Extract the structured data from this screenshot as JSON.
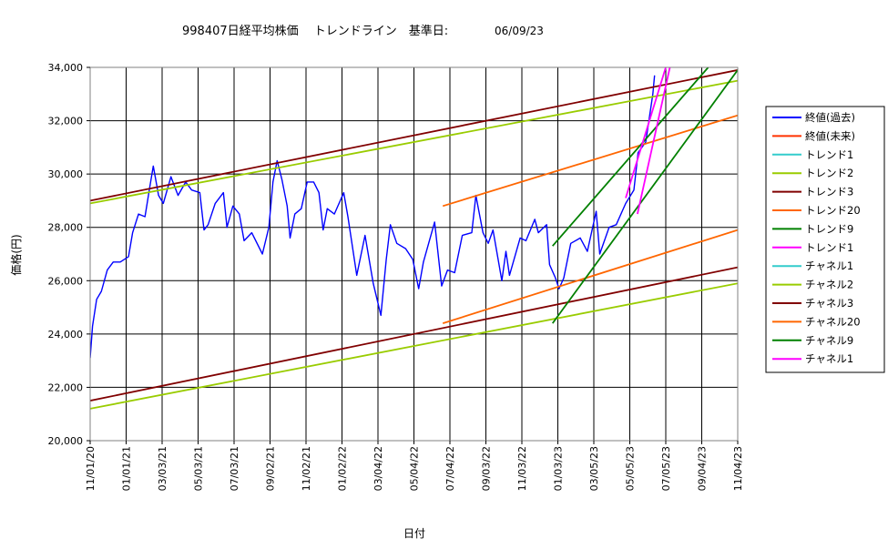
{
  "chart_data": {
    "type": "line",
    "title": "998407日経平均株価　 トレンドライン　基準日:",
    "base_date": "06/09/23",
    "xlabel": "日付",
    "ylabel": "価格(円)",
    "ylim": [
      20000,
      34000
    ],
    "yticks": [
      "20,000",
      "22,000",
      "24,000",
      "26,000",
      "28,000",
      "30,000",
      "32,000",
      "34,000"
    ],
    "xticks": [
      "11/01/20",
      "01/01/21",
      "03/03/21",
      "05/03/21",
      "07/03/21",
      "09/02/21",
      "11/02/21",
      "01/02/22",
      "03/04/22",
      "05/04/22",
      "07/04/22",
      "09/03/22",
      "11/03/22",
      "01/03/23",
      "03/05/23",
      "05/05/23",
      "07/05/23",
      "09/04/23",
      "11/04/23"
    ],
    "x_range": [
      "2020-11-01",
      "2023-11-04"
    ],
    "grid": true,
    "legend_position": "right",
    "series": [
      {
        "name": "終値(過去)",
        "color": "#0000ff",
        "points": [
          [
            "2020-11-01",
            23100
          ],
          [
            "2020-11-05",
            24300
          ],
          [
            "2020-11-12",
            25300
          ],
          [
            "2020-11-20",
            25600
          ],
          [
            "2020-11-30",
            26400
          ],
          [
            "2020-12-10",
            26700
          ],
          [
            "2020-12-22",
            26700
          ],
          [
            "2021-01-05",
            26900
          ],
          [
            "2021-01-12",
            27800
          ],
          [
            "2021-01-22",
            28500
          ],
          [
            "2021-02-02",
            28400
          ],
          [
            "2021-02-10",
            29500
          ],
          [
            "2021-02-16",
            30300
          ],
          [
            "2021-02-25",
            29200
          ],
          [
            "2021-03-05",
            28900
          ],
          [
            "2021-03-18",
            29900
          ],
          [
            "2021-03-30",
            29200
          ],
          [
            "2021-04-12",
            29700
          ],
          [
            "2021-04-22",
            29400
          ],
          [
            "2021-05-06",
            29300
          ],
          [
            "2021-05-13",
            27900
          ],
          [
            "2021-05-20",
            28100
          ],
          [
            "2021-06-01",
            28900
          ],
          [
            "2021-06-15",
            29300
          ],
          [
            "2021-06-21",
            28000
          ],
          [
            "2021-07-01",
            28800
          ],
          [
            "2021-07-12",
            28500
          ],
          [
            "2021-07-20",
            27500
          ],
          [
            "2021-08-02",
            27800
          ],
          [
            "2021-08-20",
            27000
          ],
          [
            "2021-08-31",
            28000
          ],
          [
            "2021-09-07",
            29700
          ],
          [
            "2021-09-14",
            30500
          ],
          [
            "2021-09-22",
            29800
          ],
          [
            "2021-10-01",
            28800
          ],
          [
            "2021-10-06",
            27600
          ],
          [
            "2021-10-14",
            28500
          ],
          [
            "2021-10-25",
            28700
          ],
          [
            "2021-11-04",
            29700
          ],
          [
            "2021-11-15",
            29700
          ],
          [
            "2021-11-24",
            29300
          ],
          [
            "2021-12-01",
            27900
          ],
          [
            "2021-12-08",
            28700
          ],
          [
            "2021-12-20",
            28500
          ],
          [
            "2022-01-05",
            29300
          ],
          [
            "2022-01-12",
            28400
          ],
          [
            "2022-01-27",
            26200
          ],
          [
            "2022-02-10",
            27700
          ],
          [
            "2022-02-24",
            25900
          ],
          [
            "2022-03-09",
            24700
          ],
          [
            "2022-03-18",
            26800
          ],
          [
            "2022-03-25",
            28100
          ],
          [
            "2022-04-05",
            27400
          ],
          [
            "2022-04-20",
            27200
          ],
          [
            "2022-05-02",
            26800
          ],
          [
            "2022-05-12",
            25700
          ],
          [
            "2022-05-20",
            26700
          ],
          [
            "2022-06-08",
            28200
          ],
          [
            "2022-06-20",
            25800
          ],
          [
            "2022-06-30",
            26400
          ],
          [
            "2022-07-12",
            26300
          ],
          [
            "2022-07-25",
            27700
          ],
          [
            "2022-08-10",
            27800
          ],
          [
            "2022-08-17",
            29200
          ],
          [
            "2022-08-29",
            27800
          ],
          [
            "2022-09-07",
            27400
          ],
          [
            "2022-09-15",
            27900
          ],
          [
            "2022-09-30",
            26000
          ],
          [
            "2022-10-07",
            27100
          ],
          [
            "2022-10-13",
            26200
          ],
          [
            "2022-10-31",
            27600
          ],
          [
            "2022-11-10",
            27500
          ],
          [
            "2022-11-25",
            28300
          ],
          [
            "2022-12-01",
            27800
          ],
          [
            "2022-12-15",
            28100
          ],
          [
            "2022-12-20",
            26600
          ],
          [
            "2022-12-30",
            26100
          ],
          [
            "2023-01-05",
            25700
          ],
          [
            "2023-01-13",
            26100
          ],
          [
            "2023-01-25",
            27400
          ],
          [
            "2023-02-10",
            27600
          ],
          [
            "2023-02-22",
            27100
          ],
          [
            "2023-03-09",
            28600
          ],
          [
            "2023-03-15",
            27000
          ],
          [
            "2023-03-31",
            28000
          ],
          [
            "2023-04-12",
            28100
          ],
          [
            "2023-04-28",
            28900
          ],
          [
            "2023-05-12",
            29400
          ],
          [
            "2023-05-19",
            30800
          ],
          [
            "2023-06-01",
            31200
          ],
          [
            "2023-06-13",
            33000
          ],
          [
            "2023-06-16",
            33700
          ]
        ]
      },
      {
        "name": "終値(未来)",
        "color": "#ff3300",
        "points": []
      },
      {
        "name": "トレンド1",
        "color": "#33cccc",
        "points": []
      },
      {
        "name": "トレンド2",
        "color": "#99cc00",
        "points": [
          [
            "2020-11-01",
            28900
          ],
          [
            "2023-11-04",
            33500
          ]
        ]
      },
      {
        "name": "トレンド3",
        "color": "#800000",
        "points": [
          [
            "2020-11-01",
            29000
          ],
          [
            "2023-11-04",
            33900
          ]
        ]
      },
      {
        "name": "トレンド20",
        "color": "#ff6600",
        "points": [
          [
            "2022-06-22",
            28800
          ],
          [
            "2023-11-04",
            32200
          ]
        ]
      },
      {
        "name": "トレンド9",
        "color": "#008000",
        "points": [
          [
            "2022-12-25",
            27300
          ],
          [
            "2023-09-15",
            34000
          ]
        ]
      },
      {
        "name": "トレンド1",
        "color": "#ff00ff",
        "points": [
          [
            "2023-04-28",
            29100
          ],
          [
            "2023-07-05",
            34000
          ]
        ]
      },
      {
        "name": "チャネル1",
        "color": "#33cccc",
        "points": []
      },
      {
        "name": "チャネル2",
        "color": "#99cc00",
        "points": [
          [
            "2020-11-01",
            21200
          ],
          [
            "2023-11-04",
            25900
          ]
        ]
      },
      {
        "name": "チャネル3",
        "color": "#800000",
        "points": [
          [
            "2020-11-01",
            21500
          ],
          [
            "2023-11-04",
            26500
          ]
        ]
      },
      {
        "name": "チャネル20",
        "color": "#ff6600",
        "points": [
          [
            "2022-06-22",
            24400
          ],
          [
            "2023-11-04",
            27900
          ]
        ]
      },
      {
        "name": "チャネル9",
        "color": "#008000",
        "points": [
          [
            "2022-12-25",
            24400
          ],
          [
            "2023-11-04",
            33900
          ]
        ]
      },
      {
        "name": "チャネル1",
        "color": "#ff00ff",
        "points": [
          [
            "2023-05-18",
            28500
          ],
          [
            "2023-07-12",
            34000
          ]
        ]
      }
    ]
  }
}
